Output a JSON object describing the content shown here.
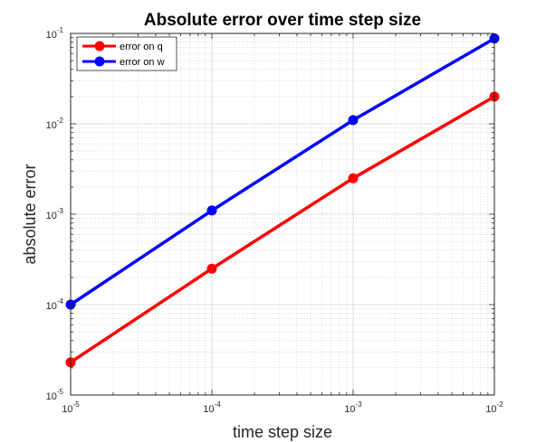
{
  "chart_data": {
    "type": "line",
    "title": "Absolute error over time step size",
    "xlabel": "time step size",
    "ylabel": "absolute error",
    "xscale": "log",
    "yscale": "log",
    "xlim": [
      1e-05,
      0.01
    ],
    "ylim": [
      1e-05,
      0.1
    ],
    "grid": "on (major and minor)",
    "legend_location": "top-left",
    "x_ticks": [
      {
        "base": "10",
        "exp": "-5"
      },
      {
        "base": "10",
        "exp": "-4"
      },
      {
        "base": "10",
        "exp": "-3"
      },
      {
        "base": "10",
        "exp": "-2"
      }
    ],
    "y_ticks": [
      {
        "base": "10",
        "exp": "-5"
      },
      {
        "base": "10",
        "exp": "-4"
      },
      {
        "base": "10",
        "exp": "-3"
      },
      {
        "base": "10",
        "exp": "-2"
      },
      {
        "base": "10",
        "exp": "-1"
      }
    ],
    "x": [
      1e-05,
      0.0001,
      0.001,
      0.01
    ],
    "series": [
      {
        "name": "error on q",
        "color": "#ff0000",
        "values": [
          2.3e-05,
          0.00025,
          0.0025,
          0.02
        ]
      },
      {
        "name": "error on w",
        "color": "#0000ff",
        "values": [
          0.0001,
          0.0011,
          0.011,
          0.088
        ]
      }
    ]
  }
}
